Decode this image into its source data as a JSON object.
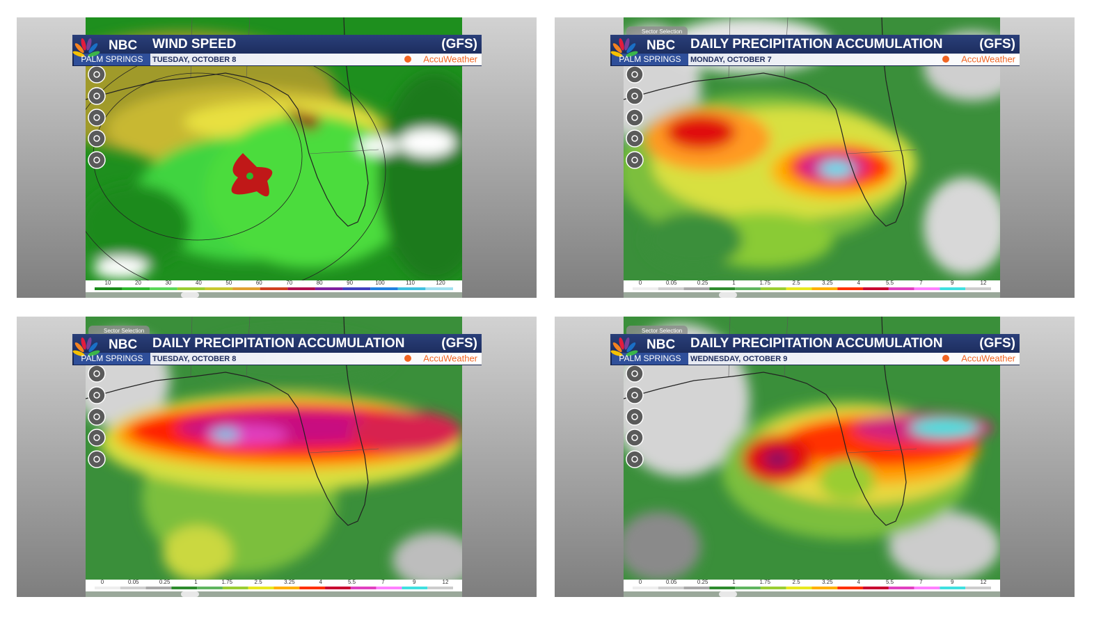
{
  "panels": [
    {
      "brand": "NBC",
      "station": "PALM SPRINGS",
      "title": "WIND SPEED",
      "model": "(GFS)",
      "date": "TUESDAY, OCTOBER 8",
      "logo": "AccuWeather",
      "scale": [
        10,
        20,
        30,
        40,
        50,
        60,
        70,
        80,
        90,
        100,
        110,
        120
      ]
    },
    {
      "brand": "NBC",
      "station": "PALM SPRINGS",
      "title": "DAILY PRECIPITATION ACCUMULATION",
      "model": "(GFS)",
      "date": "MONDAY, OCTOBER 7",
      "logo": "AccuWeather",
      "sector": "Sector Selection",
      "scale": [
        0,
        0.05,
        0.25,
        1,
        1.75,
        2.5,
        3.25,
        4,
        5.5,
        7,
        9,
        12
      ]
    },
    {
      "brand": "NBC",
      "station": "PALM SPRINGS",
      "title": "DAILY PRECIPITATION ACCUMULATION",
      "model": "(GFS)",
      "date": "TUESDAY, OCTOBER 8",
      "logo": "AccuWeather",
      "sector": "Sector Selection",
      "scale": [
        0,
        0.05,
        0.25,
        1,
        1.75,
        2.5,
        3.25,
        4,
        5.5,
        7,
        9,
        12
      ]
    },
    {
      "brand": "NBC",
      "station": "PALM SPRINGS",
      "title": "DAILY PRECIPITATION ACCUMULATION",
      "model": "(GFS)",
      "date": "WEDNESDAY, OCTOBER 9",
      "logo": "AccuWeather",
      "sector": "Sector Selection",
      "scale": [
        0,
        0.05,
        0.25,
        1,
        1.75,
        2.5,
        3.25,
        4,
        5.5,
        7,
        9,
        12
      ]
    }
  ]
}
